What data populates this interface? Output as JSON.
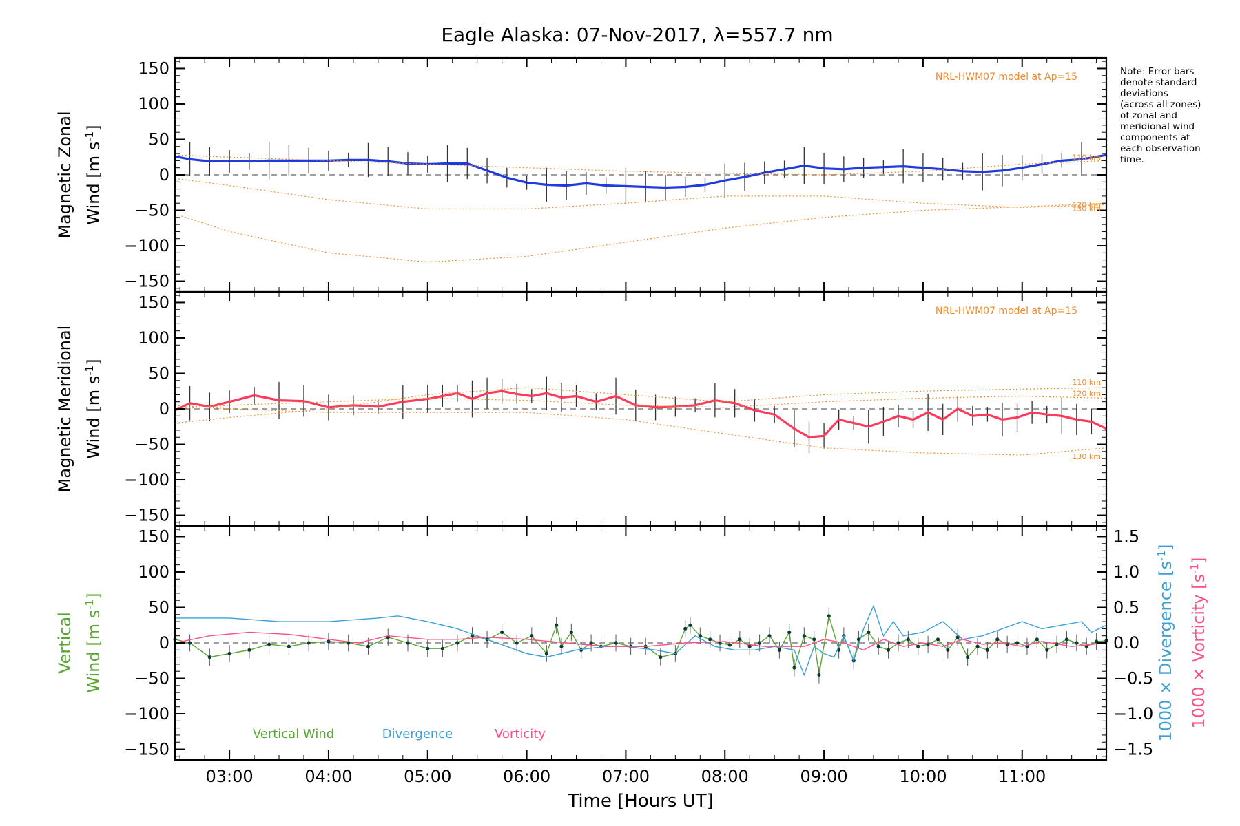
{
  "chart_data": [
    {
      "type": "line",
      "title": "Eagle Alaska: 07-Nov-2017, λ=557.7 nm",
      "panel": "zonal",
      "ylabel_lines": [
        "Magnetic Zonal",
        "Wind [m s"
      ],
      "ylabel_sup": "-1",
      "ylabel_close": "]",
      "ylim": [
        -165,
        165
      ],
      "yticks": [
        -150,
        -100,
        -50,
        0,
        50,
        100,
        150
      ],
      "xlim": [
        2.45,
        11.85
      ],
      "annotation": "NRL-HWM07 model at Ap=15",
      "model_curve_labels": [
        "110 km",
        "120 km",
        "130 km"
      ],
      "series": [
        {
          "name": "Zonal wind",
          "color": "#1f3be0",
          "x": [
            2.45,
            2.6,
            2.8,
            3.0,
            3.2,
            3.4,
            3.6,
            3.8,
            4.0,
            4.2,
            4.4,
            4.6,
            4.8,
            5.0,
            5.2,
            5.4,
            5.6,
            5.8,
            6.0,
            6.2,
            6.4,
            6.6,
            6.8,
            7.0,
            7.2,
            7.4,
            7.6,
            7.8,
            8.0,
            8.2,
            8.4,
            8.6,
            8.8,
            9.0,
            9.2,
            9.4,
            9.6,
            9.8,
            10.0,
            10.2,
            10.4,
            10.6,
            10.8,
            11.0,
            11.2,
            11.4,
            11.6,
            11.85
          ],
          "y": [
            26,
            22,
            19,
            19,
            19,
            20,
            20,
            20,
            20,
            21,
            21,
            19,
            16,
            15,
            16,
            16,
            6,
            -4,
            -11,
            -14,
            -15,
            -12,
            -15,
            -16,
            -17,
            -18,
            -17,
            -14,
            -8,
            -3,
            3,
            8,
            13,
            9,
            8,
            10,
            11,
            12,
            10,
            8,
            5,
            4,
            6,
            10,
            15,
            20,
            22,
            28
          ]
        },
        {
          "name": "Model 110 km",
          "color": "#f08a2a",
          "x": [
            2.45,
            3,
            4,
            5,
            6,
            7,
            8,
            9,
            10,
            11,
            11.85
          ],
          "y": [
            28,
            25,
            20,
            15,
            10,
            5,
            2,
            0,
            5,
            15,
            20
          ]
        },
        {
          "name": "Model 120 km",
          "color": "#f08a2a",
          "x": [
            2.45,
            3,
            4,
            5,
            6,
            7,
            8,
            9,
            10,
            11,
            11.85
          ],
          "y": [
            -5,
            -15,
            -35,
            -48,
            -48,
            -40,
            -30,
            -30,
            -40,
            -46,
            -42
          ]
        },
        {
          "name": "Model 130 km",
          "color": "#f08a2a",
          "x": [
            2.45,
            3,
            4,
            5,
            6,
            7,
            8,
            9,
            10,
            11,
            11.85
          ],
          "y": [
            -55,
            -80,
            -110,
            -123,
            -115,
            -95,
            -75,
            -60,
            -50,
            -45,
            -40
          ]
        }
      ]
    },
    {
      "type": "line",
      "panel": "meridional",
      "ylabel_lines": [
        "Magnetic Meridional",
        "Wind [m s"
      ],
      "ylabel_sup": "-1",
      "ylabel_close": "]",
      "ylim": [
        -165,
        165
      ],
      "yticks": [
        -150,
        -100,
        -50,
        0,
        50,
        100,
        150
      ],
      "xlim": [
        2.45,
        11.85
      ],
      "annotation": "NRL-HWM07 model at Ap=15",
      "model_curve_labels": [
        "110 km",
        "120 km",
        "130 km"
      ],
      "series": [
        {
          "name": "Meridional wind",
          "color": "#ff3b5c",
          "x": [
            2.45,
            2.6,
            2.8,
            3.0,
            3.25,
            3.5,
            3.75,
            4.0,
            4.25,
            4.5,
            4.75,
            5.0,
            5.15,
            5.3,
            5.45,
            5.6,
            5.75,
            5.9,
            6.05,
            6.2,
            6.35,
            6.5,
            6.7,
            6.9,
            7.1,
            7.3,
            7.5,
            7.7,
            7.9,
            8.1,
            8.3,
            8.5,
            8.7,
            8.85,
            9.0,
            9.15,
            9.3,
            9.45,
            9.6,
            9.75,
            9.9,
            10.05,
            10.2,
            10.35,
            10.5,
            10.65,
            10.8,
            10.95,
            11.1,
            11.25,
            11.4,
            11.55,
            11.7,
            11.85
          ],
          "y": [
            -2,
            8,
            3,
            10,
            19,
            12,
            11,
            2,
            5,
            3,
            10,
            14,
            18,
            22,
            14,
            22,
            25,
            21,
            18,
            22,
            16,
            18,
            10,
            18,
            5,
            2,
            3,
            5,
            12,
            8,
            -2,
            -8,
            -28,
            -40,
            -38,
            -15,
            -20,
            -25,
            -18,
            -10,
            -15,
            -5,
            -15,
            0,
            -10,
            -8,
            -15,
            -12,
            -5,
            -8,
            -10,
            -15,
            -18,
            -28
          ]
        },
        {
          "name": "Model 110 km",
          "color": "#f08a2a",
          "x": [
            2.45,
            3,
            4,
            5,
            6,
            7,
            8,
            9,
            10,
            11,
            11.85
          ],
          "y": [
            -20,
            -12,
            0,
            20,
            30,
            20,
            10,
            20,
            25,
            28,
            30
          ]
        },
        {
          "name": "Model 120 km",
          "color": "#f08a2a",
          "x": [
            2.45,
            3,
            4,
            5,
            6,
            7,
            8,
            9,
            10,
            11,
            11.85
          ],
          "y": [
            0,
            5,
            10,
            15,
            12,
            5,
            2,
            10,
            15,
            18,
            15
          ]
        },
        {
          "name": "Model 130 km",
          "color": "#f08a2a",
          "x": [
            2.45,
            3,
            4,
            5,
            6,
            7,
            8,
            9,
            10,
            11,
            11.85
          ],
          "y": [
            5,
            0,
            -5,
            -5,
            -5,
            -15,
            -35,
            -55,
            -62,
            -65,
            -55
          ]
        }
      ]
    },
    {
      "type": "line",
      "panel": "vertical",
      "ylabel_lines": [
        "Vertical",
        "Wind [m s"
      ],
      "ylabel_sup": "-1",
      "ylabel_close": "]",
      "ylim": [
        -165,
        165
      ],
      "yticks": [
        -150,
        -100,
        -50,
        0,
        50,
        100,
        150
      ],
      "y2label_divergence": "1000 × Divergence [s",
      "y2label_vorticity": "1000 × Vorticity [s",
      "y2label_sup": "-1",
      "y2label_close": "]",
      "y2lim": [
        -1.65,
        1.65
      ],
      "y2ticks": [
        -1.5,
        -1.0,
        -0.5,
        0.0,
        0.5,
        1.0,
        1.5
      ],
      "xlabel": "Time [Hours UT]",
      "xlim": [
        2.45,
        11.85
      ],
      "xticks": [
        3,
        4,
        5,
        6,
        7,
        8,
        9,
        10,
        11
      ],
      "xticklabels": [
        "03:00",
        "04:00",
        "05:00",
        "06:00",
        "07:00",
        "08:00",
        "09:00",
        "10:00",
        "11:00"
      ],
      "legend": [
        "Vertical Wind",
        "Divergence",
        "Vorticity"
      ],
      "series": [
        {
          "name": "Vertical Wind",
          "color": "#5aa832",
          "x": [
            2.45,
            2.6,
            2.8,
            3.0,
            3.2,
            3.4,
            3.6,
            3.8,
            4.0,
            4.2,
            4.4,
            4.6,
            4.8,
            5.0,
            5.15,
            5.3,
            5.45,
            5.6,
            5.75,
            5.9,
            6.05,
            6.2,
            6.3,
            6.35,
            6.45,
            6.55,
            6.65,
            6.75,
            6.9,
            7.05,
            7.2,
            7.35,
            7.5,
            7.6,
            7.65,
            7.75,
            7.85,
            7.95,
            8.05,
            8.15,
            8.25,
            8.35,
            8.45,
            8.55,
            8.65,
            8.7,
            8.8,
            8.9,
            8.95,
            9.05,
            9.15,
            9.2,
            9.3,
            9.35,
            9.45,
            9.55,
            9.65,
            9.75,
            9.85,
            9.95,
            10.05,
            10.15,
            10.25,
            10.35,
            10.45,
            10.55,
            10.65,
            10.75,
            10.85,
            10.95,
            11.05,
            11.15,
            11.25,
            11.35,
            11.45,
            11.55,
            11.65,
            11.75,
            11.85
          ],
          "y": [
            5,
            0,
            -20,
            -15,
            -10,
            -2,
            -5,
            0,
            2,
            0,
            -5,
            8,
            0,
            -8,
            -8,
            0,
            10,
            5,
            15,
            0,
            10,
            -15,
            25,
            -5,
            15,
            -10,
            0,
            -5,
            0,
            -5,
            -5,
            -20,
            -15,
            20,
            25,
            10,
            5,
            0,
            -3,
            5,
            -5,
            0,
            10,
            -10,
            15,
            -35,
            10,
            5,
            -45,
            38,
            -10,
            10,
            -25,
            5,
            15,
            -5,
            -10,
            0,
            5,
            -5,
            -2,
            5,
            -10,
            8,
            -20,
            -5,
            -10,
            5,
            -2,
            0,
            -5,
            5,
            -10,
            -2,
            5,
            0,
            -5,
            2,
            3
          ]
        },
        {
          "name": "Divergence",
          "color": "#3aa0d8",
          "x": [
            2.45,
            3.0,
            3.5,
            4.0,
            4.5,
            4.7,
            5.0,
            5.3,
            5.6,
            5.8,
            6.0,
            6.2,
            6.5,
            6.8,
            7.0,
            7.3,
            7.5,
            7.7,
            7.9,
            8.1,
            8.3,
            8.5,
            8.7,
            8.8,
            8.9,
            9.0,
            9.1,
            9.2,
            9.3,
            9.4,
            9.5,
            9.6,
            9.7,
            9.8,
            10.0,
            10.2,
            10.4,
            10.6,
            10.8,
            11.0,
            11.2,
            11.4,
            11.6,
            11.7,
            11.85
          ],
          "y": [
            0.35,
            0.35,
            0.3,
            0.3,
            0.35,
            0.38,
            0.3,
            0.2,
            0.05,
            -0.05,
            -0.15,
            -0.2,
            -0.1,
            -0.05,
            -0.05,
            -0.1,
            -0.15,
            0.1,
            -0.05,
            -0.1,
            -0.1,
            -0.05,
            -0.1,
            -0.45,
            -0.05,
            -0.15,
            -0.2,
            0.1,
            -0.25,
            0.2,
            0.52,
            0.1,
            0.3,
            0.1,
            0.15,
            0.3,
            0.05,
            0.1,
            0.2,
            0.3,
            0.2,
            0.25,
            0.3,
            0.15,
            0.25
          ]
        },
        {
          "name": "Vorticity",
          "color": "#ff4f86",
          "x": [
            2.45,
            2.8,
            3.2,
            3.6,
            4.0,
            4.3,
            4.6,
            5.0,
            5.3,
            5.6,
            6.0,
            6.4,
            6.8,
            7.2,
            7.6,
            8.0,
            8.4,
            8.8,
            9.0,
            9.2,
            9.4,
            9.6,
            9.8,
            10.0,
            10.2,
            10.4,
            10.6,
            10.8,
            11.0,
            11.2,
            11.5,
            11.85
          ],
          "y": [
            0.0,
            0.1,
            0.15,
            0.12,
            0.05,
            0.0,
            0.1,
            0.05,
            0.05,
            0.08,
            0.05,
            0.0,
            -0.05,
            -0.05,
            0.0,
            0.02,
            -0.05,
            -0.05,
            0.05,
            0.0,
            -0.1,
            0.05,
            -0.05,
            0.0,
            -0.05,
            0.05,
            -0.02,
            0.0,
            -0.05,
            0.02,
            -0.05,
            0.0
          ]
        }
      ]
    }
  ],
  "note_lines": [
    "Note: Error bars",
    "denote standard",
    "deviations",
    "(across all zones)",
    "of zonal and",
    "meridional wind",
    "components at",
    "each observation",
    "time."
  ]
}
